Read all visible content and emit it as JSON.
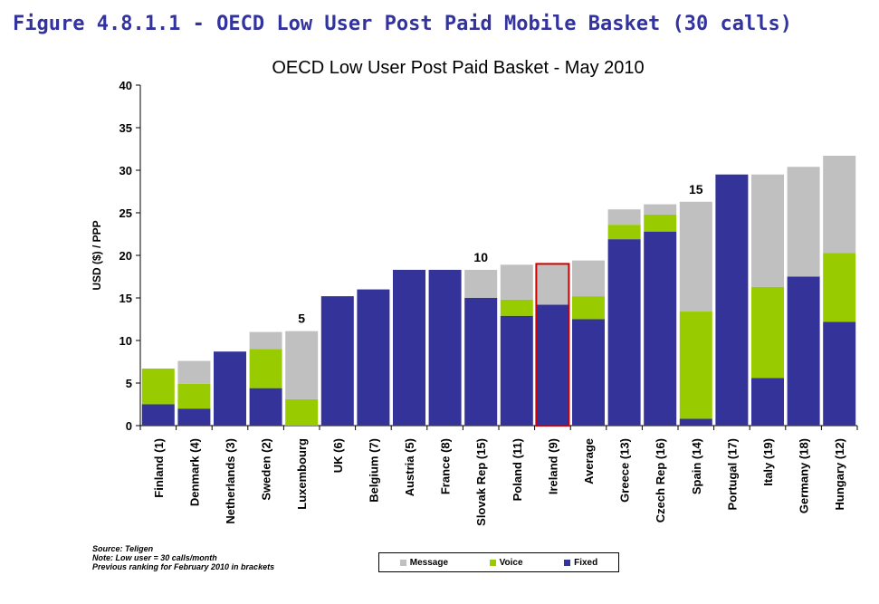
{
  "figure_caption": "Figure 4.8.1.1 - OECD Low User Post Paid Mobile Basket (30 calls)",
  "notes": [
    "Source: Teligen",
    "Note: Low user = 30 calls/month",
    "Previous ranking for February 2010 in brackets"
  ],
  "colors": {
    "Message": "#c0c0c0",
    "Voice": "#99cc00",
    "Fixed": "#333399",
    "highlight": "#cc0000"
  },
  "chart_data": {
    "type": "bar",
    "stacked": true,
    "title": "OECD Low User Post Paid Basket - May 2010",
    "xlabel": "",
    "ylabel": "USD ($) / PPP",
    "ylim": [
      0,
      40
    ],
    "yticks": [
      0,
      5,
      10,
      15,
      20,
      25,
      30,
      35,
      40
    ],
    "categories": [
      "Finland (1)",
      "Denmark (4)",
      "Netherlands (3)",
      "Sweden (2)",
      "Luxembourg",
      "UK (6)",
      "Belgium (7)",
      "Austria (5)",
      "France (8)",
      "Slovak Rep (15)",
      "Poland (11)",
      "Ireland (9)",
      "Average",
      "Greece (13)",
      "Czech Rep (16)",
      "Spain (14)",
      "Portugal (17)",
      "Italy (19)",
      "Germany (18)",
      "Hungary (12)"
    ],
    "series": [
      {
        "name": "Fixed",
        "values": [
          2.5,
          2.0,
          8.7,
          4.4,
          0.0,
          15.2,
          16.0,
          18.3,
          18.3,
          15.0,
          12.9,
          14.2,
          12.5,
          21.9,
          22.8,
          0.8,
          29.5,
          5.6,
          17.5,
          12.2
        ]
      },
      {
        "name": "Voice",
        "values": [
          4.2,
          2.9,
          0.0,
          4.6,
          3.1,
          0.0,
          0.0,
          0.0,
          0.0,
          0.0,
          1.9,
          0.0,
          2.7,
          1.7,
          2.0,
          12.6,
          0.0,
          10.7,
          0.0,
          8.1
        ]
      },
      {
        "name": "Message",
        "values": [
          0.0,
          2.7,
          0.0,
          2.0,
          8.0,
          0.0,
          0.0,
          0.0,
          0.0,
          3.3,
          4.1,
          4.8,
          4.2,
          1.8,
          1.2,
          12.9,
          0.0,
          13.2,
          12.9,
          11.4
        ]
      }
    ],
    "highlight_category": "Ireland (9)",
    "annotations": [
      {
        "category": "Luxembourg",
        "text": "5"
      },
      {
        "category": "Slovak Rep (15)",
        "text": "10"
      },
      {
        "category": "Spain (14)",
        "text": "15"
      }
    ],
    "legend": {
      "position": "bottom",
      "order": [
        "Message",
        "Voice",
        "Fixed"
      ]
    },
    "grid": false
  }
}
